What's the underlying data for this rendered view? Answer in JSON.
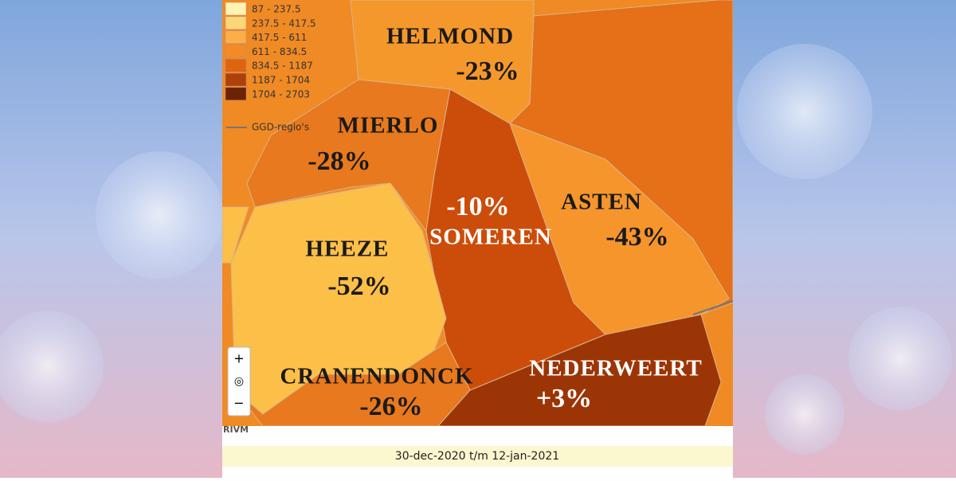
{
  "legend": {
    "items": [
      {
        "label": "87 - 237.5",
        "color": "#fff3b0"
      },
      {
        "label": "237.5 - 417.5",
        "color": "#fdd67a"
      },
      {
        "label": "417.5 - 611",
        "color": "#fcae48"
      },
      {
        "label": "611 - 834.5",
        "color": "#f48a25"
      },
      {
        "label": "834.5 - 1187",
        "color": "#de640f"
      },
      {
        "label": "1187 - 1704",
        "color": "#ae410a"
      },
      {
        "label": "1704 - 2703",
        "color": "#6b2304"
      }
    ],
    "boundary_label": "GGD-regio's"
  },
  "regions": [
    {
      "name": "HELMOND",
      "change": "-23%"
    },
    {
      "name": "MIERLO",
      "change": "-28%"
    },
    {
      "name": "SOMEREN",
      "change": "-10%"
    },
    {
      "name": "ASTEN",
      "change": "-43%"
    },
    {
      "name": "HEEZE",
      "change": "-52%"
    },
    {
      "name": "CRANENDONCK",
      "change": "-26%"
    },
    {
      "name": "NEDERWEERT",
      "change": "+3%"
    }
  ],
  "zoom_controls": [
    "+",
    "◎",
    "−"
  ],
  "attribution": "RIVM",
  "date_range": "30-dec-2020 t/m 12-jan-2021"
}
